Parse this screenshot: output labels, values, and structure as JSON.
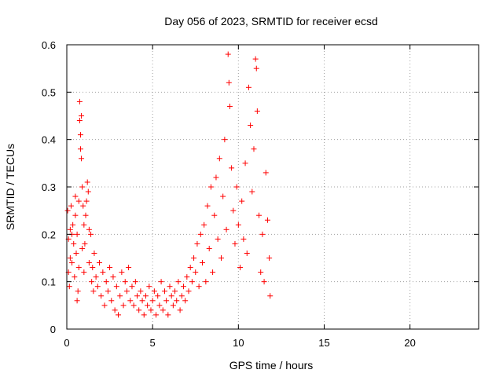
{
  "chart_data": {
    "type": "scatter",
    "title": "Day 056 of 2023, SRMTID for receiver ecsd",
    "xlabel": "GPS time / hours",
    "ylabel": "SRMTID / TECUs",
    "xlim": [
      0,
      24
    ],
    "ylim": [
      0,
      0.6
    ],
    "xticks": [
      0,
      5,
      10,
      15,
      20
    ],
    "yticks": [
      0,
      0.1,
      0.2,
      0.3,
      0.4,
      0.5,
      0.6
    ],
    "xtick_labels": [
      "0",
      "5",
      "10",
      "15",
      "20"
    ],
    "ytick_labels": [
      "0",
      "0.1",
      "0.2",
      "0.3",
      "0.4",
      "0.5",
      "0.6"
    ],
    "grid": true,
    "marker": "+",
    "series": [
      {
        "name": "SRMTID",
        "color": "#ff0000",
        "points": [
          [
            0.05,
            0.25
          ],
          [
            0.1,
            0.12
          ],
          [
            0.1,
            0.19
          ],
          [
            0.15,
            0.09
          ],
          [
            0.2,
            0.15
          ],
          [
            0.2,
            0.21
          ],
          [
            0.25,
            0.26
          ],
          [
            0.3,
            0.14
          ],
          [
            0.3,
            0.2
          ],
          [
            0.35,
            0.22
          ],
          [
            0.4,
            0.18
          ],
          [
            0.45,
            0.11
          ],
          [
            0.5,
            0.24
          ],
          [
            0.5,
            0.28
          ],
          [
            0.55,
            0.16
          ],
          [
            0.6,
            0.06
          ],
          [
            0.6,
            0.2
          ],
          [
            0.65,
            0.08
          ],
          [
            0.7,
            0.27
          ],
          [
            0.7,
            0.13
          ],
          [
            0.75,
            0.48
          ],
          [
            0.75,
            0.44
          ],
          [
            0.8,
            0.41
          ],
          [
            0.8,
            0.38
          ],
          [
            0.85,
            0.36
          ],
          [
            0.85,
            0.45
          ],
          [
            0.9,
            0.3
          ],
          [
            0.9,
            0.17
          ],
          [
            0.95,
            0.26
          ],
          [
            1.0,
            0.22
          ],
          [
            1.0,
            0.12
          ],
          [
            1.05,
            0.18
          ],
          [
            1.1,
            0.24
          ],
          [
            1.15,
            0.27
          ],
          [
            1.2,
            0.31
          ],
          [
            1.25,
            0.29
          ],
          [
            1.3,
            0.21
          ],
          [
            1.3,
            0.14
          ],
          [
            1.4,
            0.2
          ],
          [
            1.45,
            0.1
          ],
          [
            1.5,
            0.13
          ],
          [
            1.55,
            0.08
          ],
          [
            1.6,
            0.16
          ],
          [
            1.7,
            0.11
          ],
          [
            1.8,
            0.09
          ],
          [
            1.9,
            0.14
          ],
          [
            2.0,
            0.07
          ],
          [
            2.1,
            0.12
          ],
          [
            2.2,
            0.05
          ],
          [
            2.3,
            0.1
          ],
          [
            2.4,
            0.08
          ],
          [
            2.5,
            0.13
          ],
          [
            2.6,
            0.06
          ],
          [
            2.7,
            0.11
          ],
          [
            2.8,
            0.04
          ],
          [
            2.9,
            0.09
          ],
          [
            3.0,
            0.03
          ],
          [
            3.1,
            0.07
          ],
          [
            3.2,
            0.12
          ],
          [
            3.3,
            0.05
          ],
          [
            3.4,
            0.1
          ],
          [
            3.5,
            0.08
          ],
          [
            3.6,
            0.13
          ],
          [
            3.7,
            0.06
          ],
          [
            3.8,
            0.09
          ],
          [
            3.9,
            0.05
          ],
          [
            4.0,
            0.1
          ],
          [
            4.1,
            0.07
          ],
          [
            4.2,
            0.04
          ],
          [
            4.3,
            0.08
          ],
          [
            4.4,
            0.06
          ],
          [
            4.5,
            0.03
          ],
          [
            4.6,
            0.07
          ],
          [
            4.7,
            0.05
          ],
          [
            4.8,
            0.09
          ],
          [
            4.9,
            0.04
          ],
          [
            5.0,
            0.06
          ],
          [
            5.1,
            0.08
          ],
          [
            5.2,
            0.03
          ],
          [
            5.3,
            0.07
          ],
          [
            5.4,
            0.05
          ],
          [
            5.5,
            0.1
          ],
          [
            5.6,
            0.04
          ],
          [
            5.7,
            0.08
          ],
          [
            5.8,
            0.06
          ],
          [
            5.9,
            0.03
          ],
          [
            6.0,
            0.09
          ],
          [
            6.1,
            0.07
          ],
          [
            6.2,
            0.05
          ],
          [
            6.3,
            0.08
          ],
          [
            6.4,
            0.06
          ],
          [
            6.5,
            0.1
          ],
          [
            6.6,
            0.04
          ],
          [
            6.7,
            0.07
          ],
          [
            6.8,
            0.09
          ],
          [
            6.9,
            0.06
          ],
          [
            7.0,
            0.11
          ],
          [
            7.1,
            0.08
          ],
          [
            7.2,
            0.13
          ],
          [
            7.3,
            0.1
          ],
          [
            7.4,
            0.15
          ],
          [
            7.5,
            0.12
          ],
          [
            7.6,
            0.18
          ],
          [
            7.7,
            0.09
          ],
          [
            7.8,
            0.2
          ],
          [
            7.9,
            0.14
          ],
          [
            8.0,
            0.22
          ],
          [
            8.1,
            0.1
          ],
          [
            8.2,
            0.26
          ],
          [
            8.3,
            0.17
          ],
          [
            8.4,
            0.3
          ],
          [
            8.5,
            0.12
          ],
          [
            8.6,
            0.24
          ],
          [
            8.7,
            0.32
          ],
          [
            8.8,
            0.19
          ],
          [
            8.9,
            0.36
          ],
          [
            9.0,
            0.15
          ],
          [
            9.1,
            0.28
          ],
          [
            9.2,
            0.4
          ],
          [
            9.3,
            0.21
          ],
          [
            9.4,
            0.58
          ],
          [
            9.45,
            0.52
          ],
          [
            9.5,
            0.47
          ],
          [
            9.6,
            0.34
          ],
          [
            9.7,
            0.25
          ],
          [
            9.8,
            0.18
          ],
          [
            9.9,
            0.3
          ],
          [
            10.0,
            0.22
          ],
          [
            10.1,
            0.13
          ],
          [
            10.2,
            0.27
          ],
          [
            10.3,
            0.19
          ],
          [
            10.4,
            0.35
          ],
          [
            10.5,
            0.16
          ],
          [
            10.6,
            0.51
          ],
          [
            10.7,
            0.43
          ],
          [
            10.8,
            0.29
          ],
          [
            10.9,
            0.38
          ],
          [
            11.0,
            0.57
          ],
          [
            11.05,
            0.55
          ],
          [
            11.1,
            0.46
          ],
          [
            11.2,
            0.24
          ],
          [
            11.3,
            0.12
          ],
          [
            11.4,
            0.2
          ],
          [
            11.5,
            0.1
          ],
          [
            11.6,
            0.33
          ],
          [
            11.7,
            0.23
          ],
          [
            11.8,
            0.15
          ],
          [
            11.85,
            0.07
          ]
        ]
      }
    ]
  }
}
